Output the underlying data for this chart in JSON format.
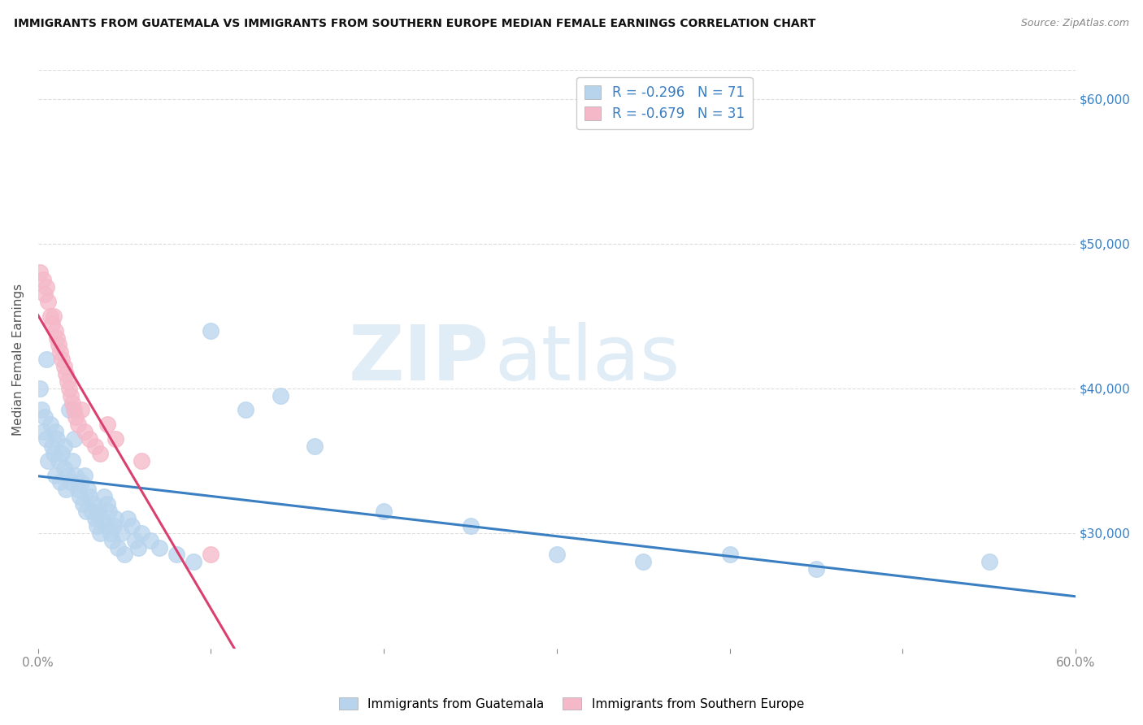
{
  "title": "IMMIGRANTS FROM GUATEMALA VS IMMIGRANTS FROM SOUTHERN EUROPE MEDIAN FEMALE EARNINGS CORRELATION CHART",
  "source": "Source: ZipAtlas.com",
  "ylabel": "Median Female Earnings",
  "right_yticks": [
    30000,
    40000,
    50000,
    60000
  ],
  "right_ytick_labels": [
    "$30,000",
    "$40,000",
    "$50,000",
    "$60,000"
  ],
  "watermark_zip": "ZIP",
  "watermark_atlas": "atlas",
  "legend_entries": [
    {
      "label": "R = -0.296   N = 71",
      "color": "#b8d4ed"
    },
    {
      "label": "R = -0.679   N = 31",
      "color": "#f5b8c8"
    }
  ],
  "legend_bottom": [
    "Immigrants from Guatemala",
    "Immigrants from Southern Europe"
  ],
  "guatemala_color": "#b8d4ed",
  "guatemala_line_color": "#3a7fc1",
  "s_europe_color": "#f5b8c8",
  "s_europe_line_color": "#d94070",
  "guatemala_x": [
    0.001,
    0.002,
    0.003,
    0.004,
    0.005,
    0.005,
    0.006,
    0.007,
    0.008,
    0.009,
    0.01,
    0.01,
    0.011,
    0.012,
    0.013,
    0.014,
    0.015,
    0.015,
    0.016,
    0.017,
    0.018,
    0.019,
    0.02,
    0.021,
    0.022,
    0.023,
    0.024,
    0.025,
    0.026,
    0.027,
    0.028,
    0.029,
    0.03,
    0.031,
    0.032,
    0.033,
    0.034,
    0.035,
    0.036,
    0.037,
    0.038,
    0.039,
    0.04,
    0.041,
    0.042,
    0.043,
    0.044,
    0.045,
    0.046,
    0.048,
    0.05,
    0.052,
    0.054,
    0.056,
    0.058,
    0.06,
    0.065,
    0.07,
    0.08,
    0.09,
    0.1,
    0.12,
    0.14,
    0.16,
    0.2,
    0.25,
    0.3,
    0.35,
    0.4,
    0.45,
    0.55
  ],
  "guatemala_y": [
    40000,
    38500,
    37000,
    38000,
    36500,
    42000,
    35000,
    37500,
    36000,
    35500,
    34000,
    37000,
    36500,
    35000,
    33500,
    35500,
    36000,
    34500,
    33000,
    34000,
    38500,
    33500,
    35000,
    36500,
    34000,
    33000,
    32500,
    33500,
    32000,
    34000,
    31500,
    33000,
    32500,
    31500,
    32000,
    31000,
    30500,
    31500,
    30000,
    31000,
    32500,
    30500,
    32000,
    31500,
    30000,
    29500,
    30500,
    31000,
    29000,
    30000,
    28500,
    31000,
    30500,
    29500,
    29000,
    30000,
    29500,
    29000,
    28500,
    28000,
    44000,
    38500,
    39500,
    36000,
    31500,
    30500,
    28500,
    28000,
    28500,
    27500,
    28000
  ],
  "s_europe_x": [
    0.001,
    0.003,
    0.004,
    0.005,
    0.006,
    0.007,
    0.008,
    0.009,
    0.01,
    0.011,
    0.012,
    0.013,
    0.014,
    0.015,
    0.016,
    0.017,
    0.018,
    0.019,
    0.02,
    0.021,
    0.022,
    0.023,
    0.025,
    0.027,
    0.03,
    0.033,
    0.036,
    0.04,
    0.045,
    0.06,
    0.1
  ],
  "s_europe_y": [
    48000,
    47500,
    46500,
    47000,
    46000,
    45000,
    44500,
    45000,
    44000,
    43500,
    43000,
    42500,
    42000,
    41500,
    41000,
    40500,
    40000,
    39500,
    39000,
    38500,
    38000,
    37500,
    38500,
    37000,
    36500,
    36000,
    35500,
    37500,
    36500,
    35000,
    28500
  ],
  "xmin": 0.0,
  "xmax": 0.6,
  "ymin": 22000,
  "ymax": 62000,
  "background_color": "#ffffff",
  "grid_color": "#dddddd",
  "title_color": "#111111",
  "source_color": "#888888",
  "right_label_color": "#3a7fc1",
  "xtick_positions": [
    0.0,
    0.1,
    0.2,
    0.3,
    0.4,
    0.5,
    0.6
  ]
}
